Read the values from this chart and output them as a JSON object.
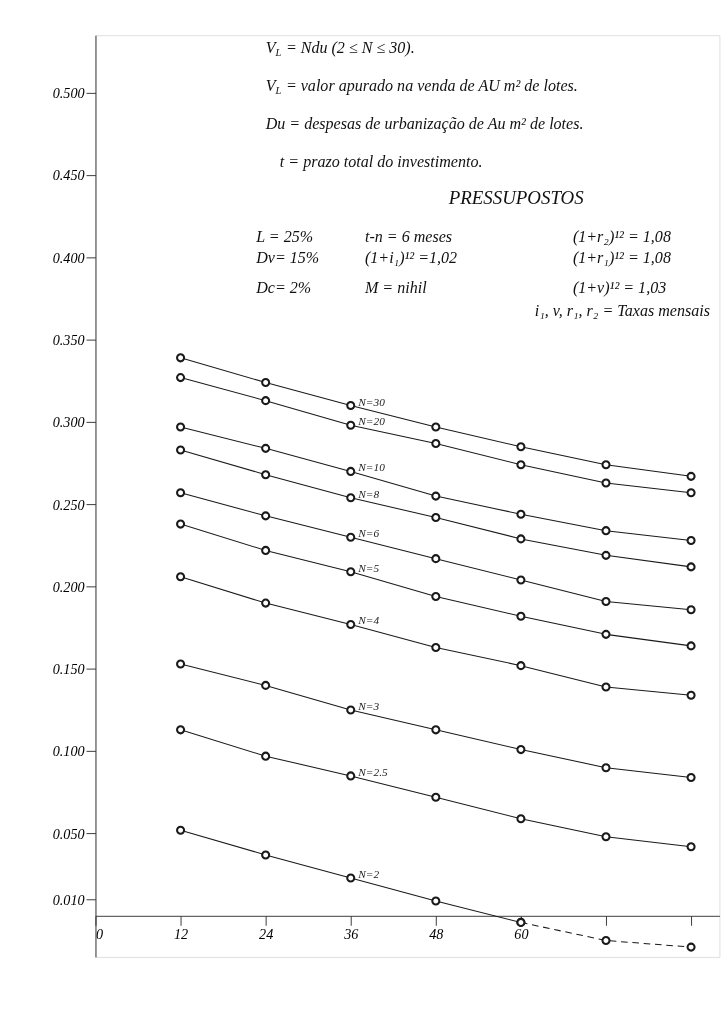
{
  "chart_data": {
    "type": "line",
    "xlim": [
      0,
      88
    ],
    "ylim": [
      -0.025,
      0.535
    ],
    "xticks": [
      0,
      12,
      24,
      36,
      48,
      60,
      {
        "value": 72,
        "label": null
      },
      {
        "value": 84,
        "label": null
      }
    ],
    "yticks": [
      {
        "value": 0.01,
        "label": "0.010"
      },
      {
        "value": 0.05,
        "label": "0.050"
      },
      {
        "value": 0.1,
        "label": "0.100"
      },
      {
        "value": 0.15,
        "label": "0.150"
      },
      {
        "value": 0.2,
        "label": "0.200"
      },
      {
        "value": 0.25,
        "label": "0.250"
      },
      {
        "value": 0.3,
        "label": "0.300"
      },
      {
        "value": 0.35,
        "label": "0.350"
      },
      {
        "value": 0.4,
        "label": "0.400"
      },
      {
        "value": 0.45,
        "label": "0.450"
      },
      {
        "value": 0.5,
        "label": "0.500"
      }
    ],
    "x": [
      12,
      24,
      36,
      48,
      60,
      72,
      84
    ],
    "grid": false,
    "legend": false,
    "marker": "circle",
    "line_style": "solid",
    "series": [
      {
        "name": "N=30",
        "color": "#1a1a1a",
        "values": [
          0.339,
          0.324,
          0.31,
          0.297,
          0.285,
          0.274,
          0.267
        ]
      },
      {
        "name": "N=20",
        "color": "#1a1a1a",
        "values": [
          0.327,
          0.313,
          0.298,
          0.287,
          0.274,
          0.263,
          0.257
        ]
      },
      {
        "name": "N=10",
        "color": "#1a1a1a",
        "values": [
          0.297,
          0.284,
          0.27,
          0.255,
          0.244,
          0.234,
          0.228
        ]
      },
      {
        "name": "N=8",
        "color": "#1a1a1a",
        "values": [
          0.283,
          0.268,
          0.254,
          0.242,
          0.229,
          0.219,
          0.212
        ]
      },
      {
        "name": "N=6",
        "color": "#1a1a1a",
        "values": [
          0.257,
          0.243,
          0.23,
          0.217,
          0.204,
          0.191,
          0.186
        ]
      },
      {
        "name": "N=5",
        "color": "#1a1a1a",
        "values": [
          0.238,
          0.222,
          0.209,
          0.194,
          0.182,
          0.171,
          0.164
        ]
      },
      {
        "name": "N=4",
        "color": "#1a1a1a",
        "values": [
          0.206,
          0.19,
          0.177,
          0.163,
          0.152,
          0.139,
          0.134
        ]
      },
      {
        "name": "N=3",
        "color": "#1a1a1a",
        "values": [
          0.153,
          0.14,
          0.125,
          0.113,
          0.101,
          0.09,
          0.084
        ]
      },
      {
        "name": "N=2.5",
        "color": "#1a1a1a",
        "values": [
          0.113,
          0.097,
          0.085,
          0.072,
          0.059,
          0.048,
          0.042
        ]
      },
      {
        "name": "N=2",
        "color": "#1a1a1a",
        "x": [
          12,
          24,
          36,
          48,
          60
        ],
        "values": [
          0.052,
          0.037,
          0.023,
          0.009,
          -0.004
        ]
      },
      {
        "color": "#1a1a1a",
        "line_style": "dashed",
        "x": [
          60,
          72,
          84
        ],
        "values": [
          -0.004,
          -0.015,
          -0.019
        ]
      }
    ],
    "annotations": [
      "V$_{L}$ = Ndu (2 ≤ N ≤ 30).",
      "V$_{L}$ = valor apurado na venda de AU m² de lotes.",
      "Du = despesas de urbanização de Au m² de lotes.",
      "t = prazo total do investimento.",
      "PRESSUPOSTOS",
      "L = 25%",
      "t-n = 6 meses",
      "(1+r₂)¹² = 1,08",
      "Dv= 15%",
      "(1+i₁)¹² =1,02",
      "(1+r₁)¹² = 1,08",
      "Dc= 2%",
      "M = nihil",
      "(1+v)¹² = 1,03",
      "i₁, v, r₁, r₂ = Taxas mensais"
    ]
  }
}
